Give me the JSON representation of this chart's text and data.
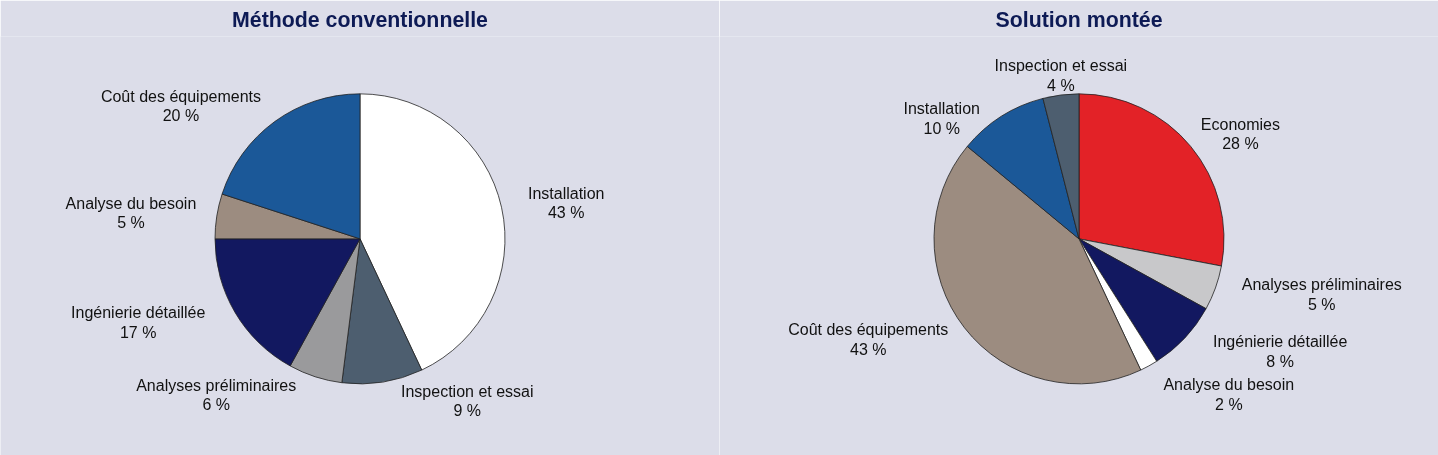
{
  "chart_data": [
    {
      "type": "pie",
      "title": "Méthode conventionnelle",
      "categories": [
        "Installation",
        "Inspection et essai",
        "Analyses préliminaires",
        "Ingénierie détaillée",
        "Analyse du besoin",
        "Coût des équipements"
      ],
      "values": [
        43,
        9,
        6,
        17,
        5,
        20
      ],
      "value_labels": [
        "43 %",
        "9 %",
        "6 %",
        "17 %",
        "5 %",
        "20 %"
      ],
      "colors": [
        "#ffffff",
        "#4d5e6f",
        "#9a9a9c",
        "#121860",
        "#9c8c80",
        "#1b5898"
      ]
    },
    {
      "type": "pie",
      "title": "Solution montée",
      "categories": [
        "Economies",
        "Analyses préliminaires",
        "Ingénierie détaillée",
        "Analyse du besoin",
        "Coût des équipements",
        "Installation",
        "Inspection et essai"
      ],
      "values": [
        28,
        5,
        8,
        2,
        43,
        10,
        4
      ],
      "value_labels": [
        "28 %",
        "5 %",
        "8 %",
        "2 %",
        "43 %",
        "10 %",
        "4 %"
      ],
      "colors": [
        "#e32227",
        "#c8c8ca",
        "#121860",
        "#ffffff",
        "#9c8c80",
        "#1b5898",
        "#4d5e6f"
      ]
    }
  ]
}
